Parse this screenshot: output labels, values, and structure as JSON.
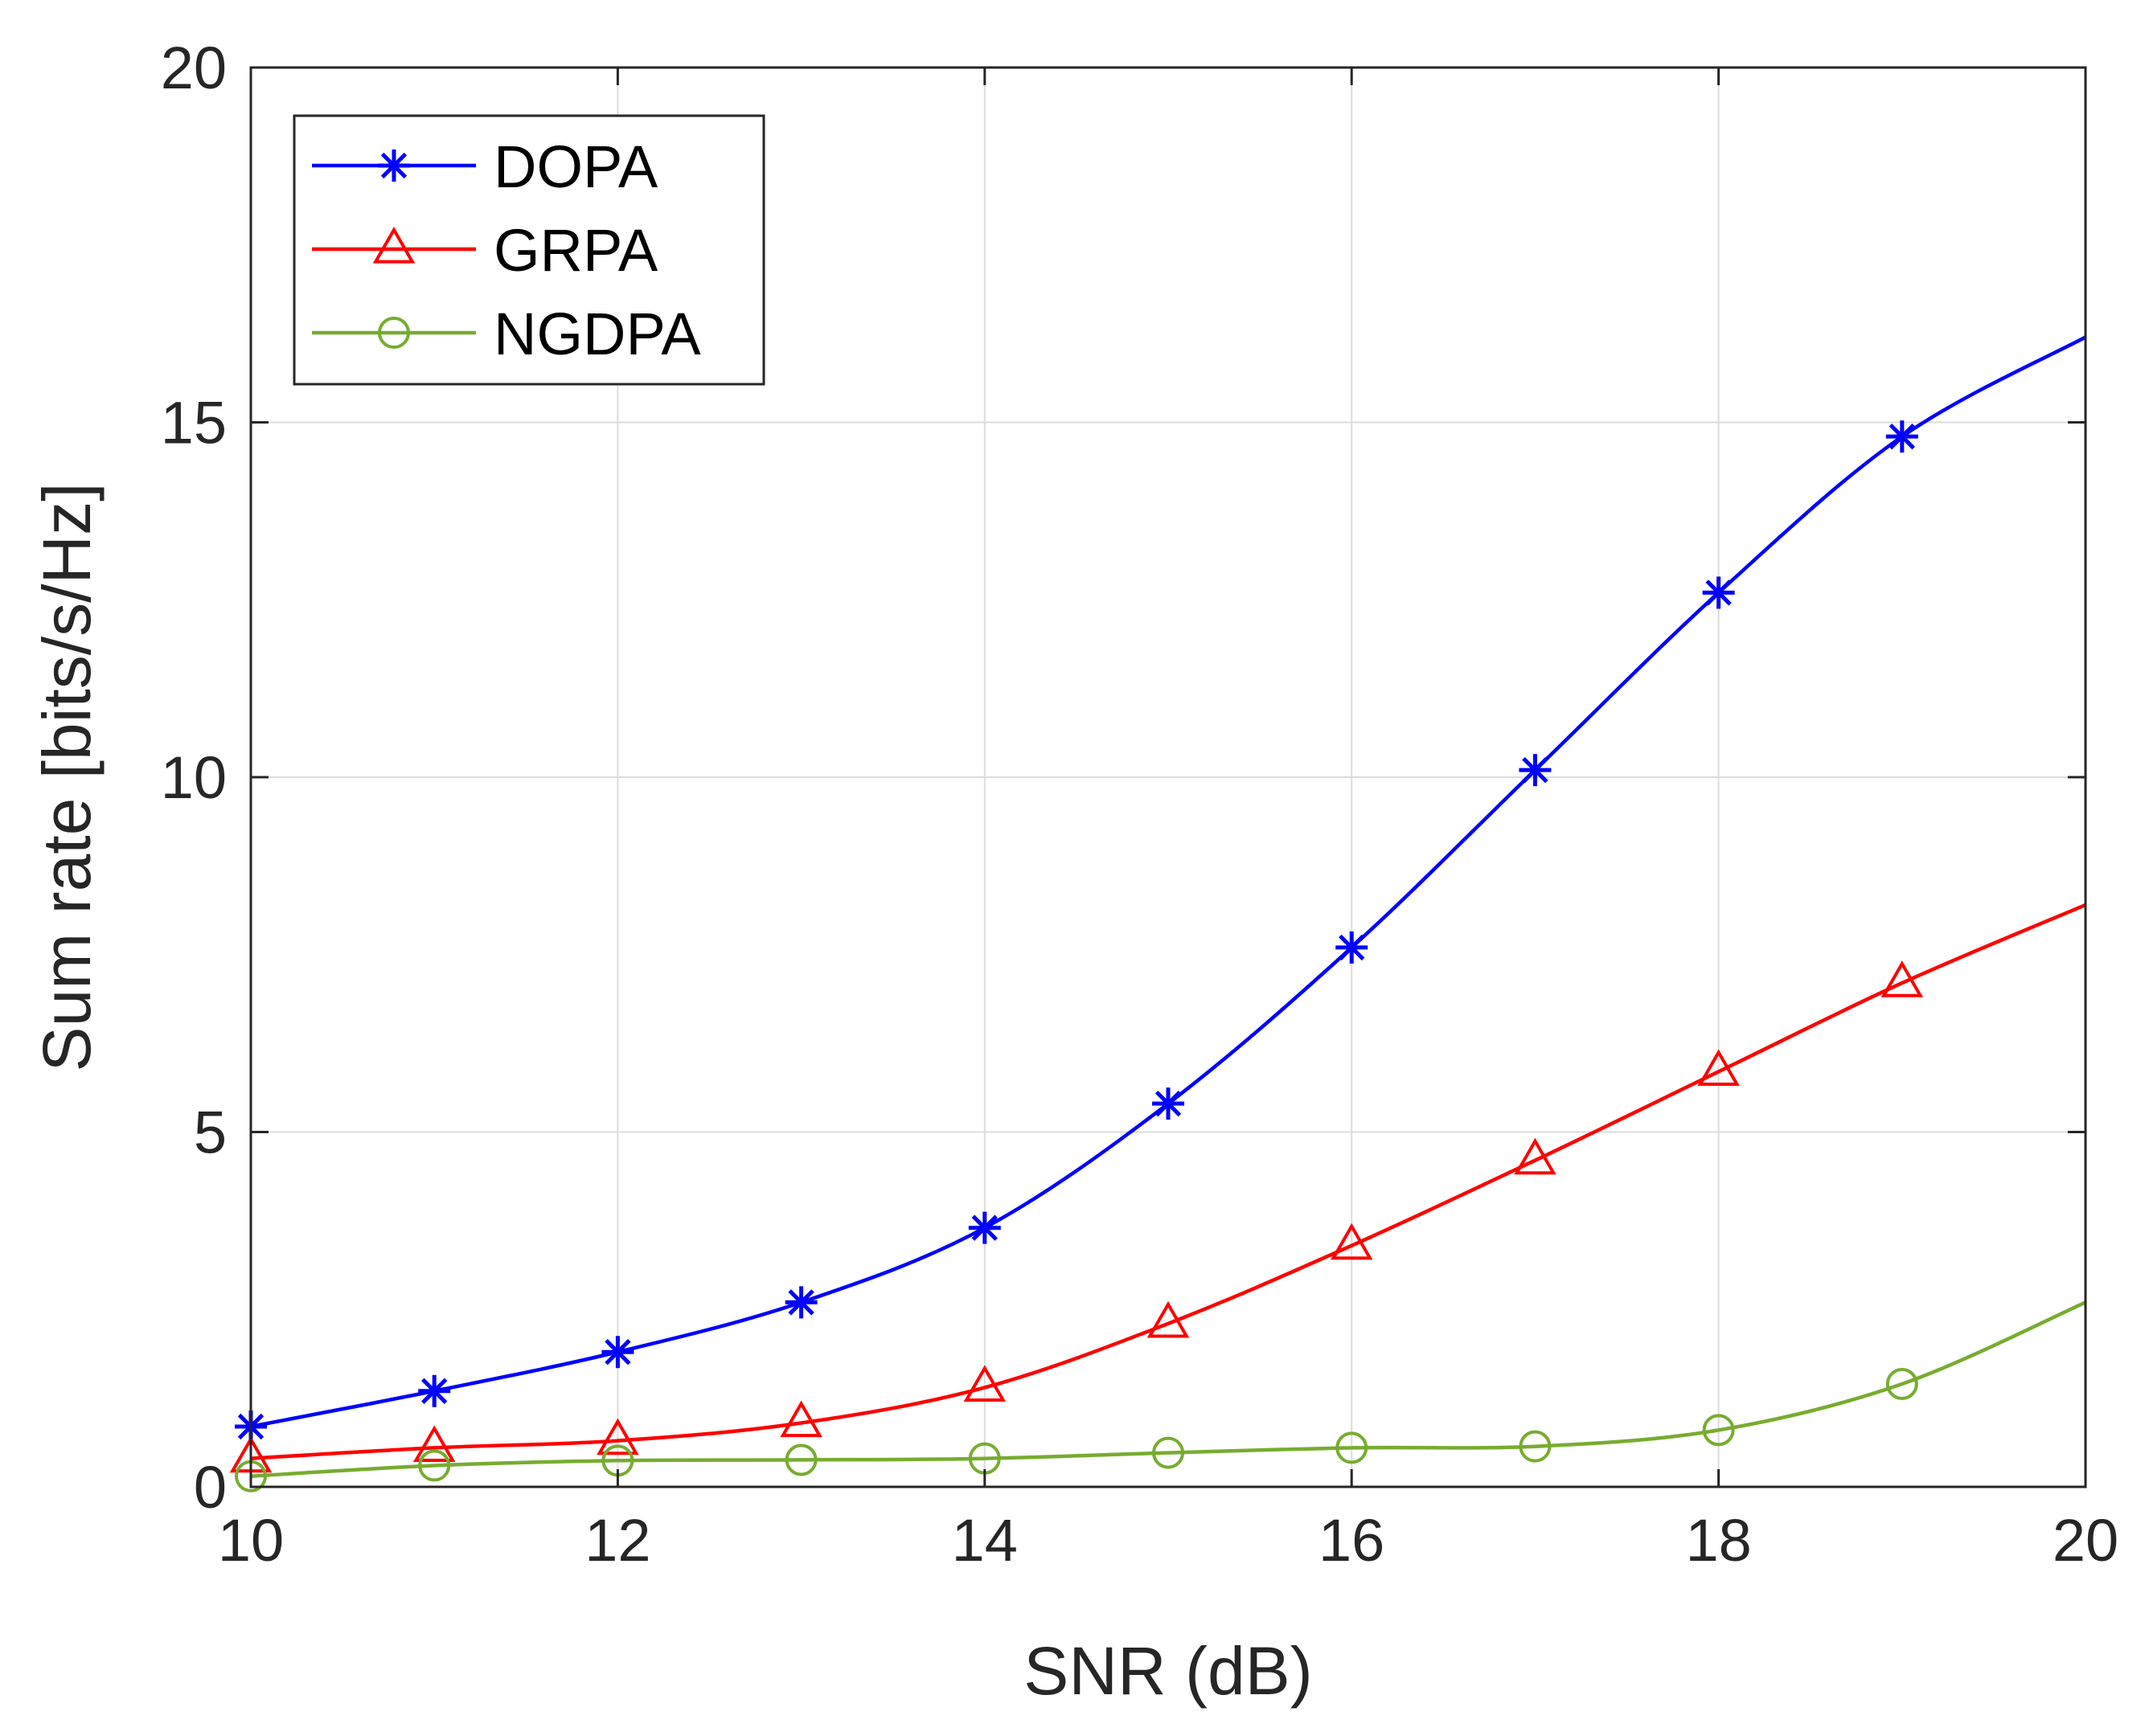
{
  "chart_data": {
    "type": "line",
    "title": "",
    "xlabel": "SNR (dB)",
    "ylabel": "Sum rate [bits/s/Hz]",
    "xlim": [
      10,
      20
    ],
    "ylim": [
      0,
      20
    ],
    "xticks": [
      "10",
      "12",
      "14",
      "16",
      "18",
      "20"
    ],
    "yticks": [
      "0",
      "5",
      "10",
      "15",
      "20"
    ],
    "grid": true,
    "legend_position": "top-left",
    "series": [
      {
        "name": "DOPA",
        "color": "#0000ff",
        "marker": "asterisk",
        "x": [
          10,
          11,
          12,
          13,
          14,
          15,
          16,
          17,
          18,
          19,
          20
        ],
        "values": [
          0.85,
          1.35,
          1.9,
          2.6,
          3.65,
          5.4,
          7.6,
          10.1,
          12.6,
          14.8,
          16.2
        ],
        "marker_x": [
          10,
          11,
          12,
          13,
          14,
          15,
          16,
          17,
          18,
          19
        ]
      },
      {
        "name": "GRPA",
        "color": "#ff0000",
        "marker": "triangle",
        "x": [
          10,
          11,
          12,
          13,
          14,
          15,
          16,
          17,
          18,
          19,
          20
        ],
        "values": [
          0.4,
          0.55,
          0.65,
          0.9,
          1.4,
          2.3,
          3.4,
          4.6,
          5.85,
          7.1,
          8.2
        ],
        "marker_x": [
          10,
          11,
          12,
          13,
          14,
          15,
          16,
          17,
          18,
          19
        ]
      },
      {
        "name": "NGDPA",
        "color": "#77ac30",
        "marker": "circle",
        "x": [
          10,
          11,
          12,
          13,
          14,
          15,
          16,
          17,
          18,
          19,
          20
        ],
        "values": [
          0.15,
          0.3,
          0.37,
          0.38,
          0.4,
          0.48,
          0.55,
          0.57,
          0.8,
          1.45,
          2.6
        ],
        "marker_x": [
          10,
          11,
          12,
          13,
          14,
          15,
          16,
          17,
          18,
          19
        ]
      }
    ]
  }
}
